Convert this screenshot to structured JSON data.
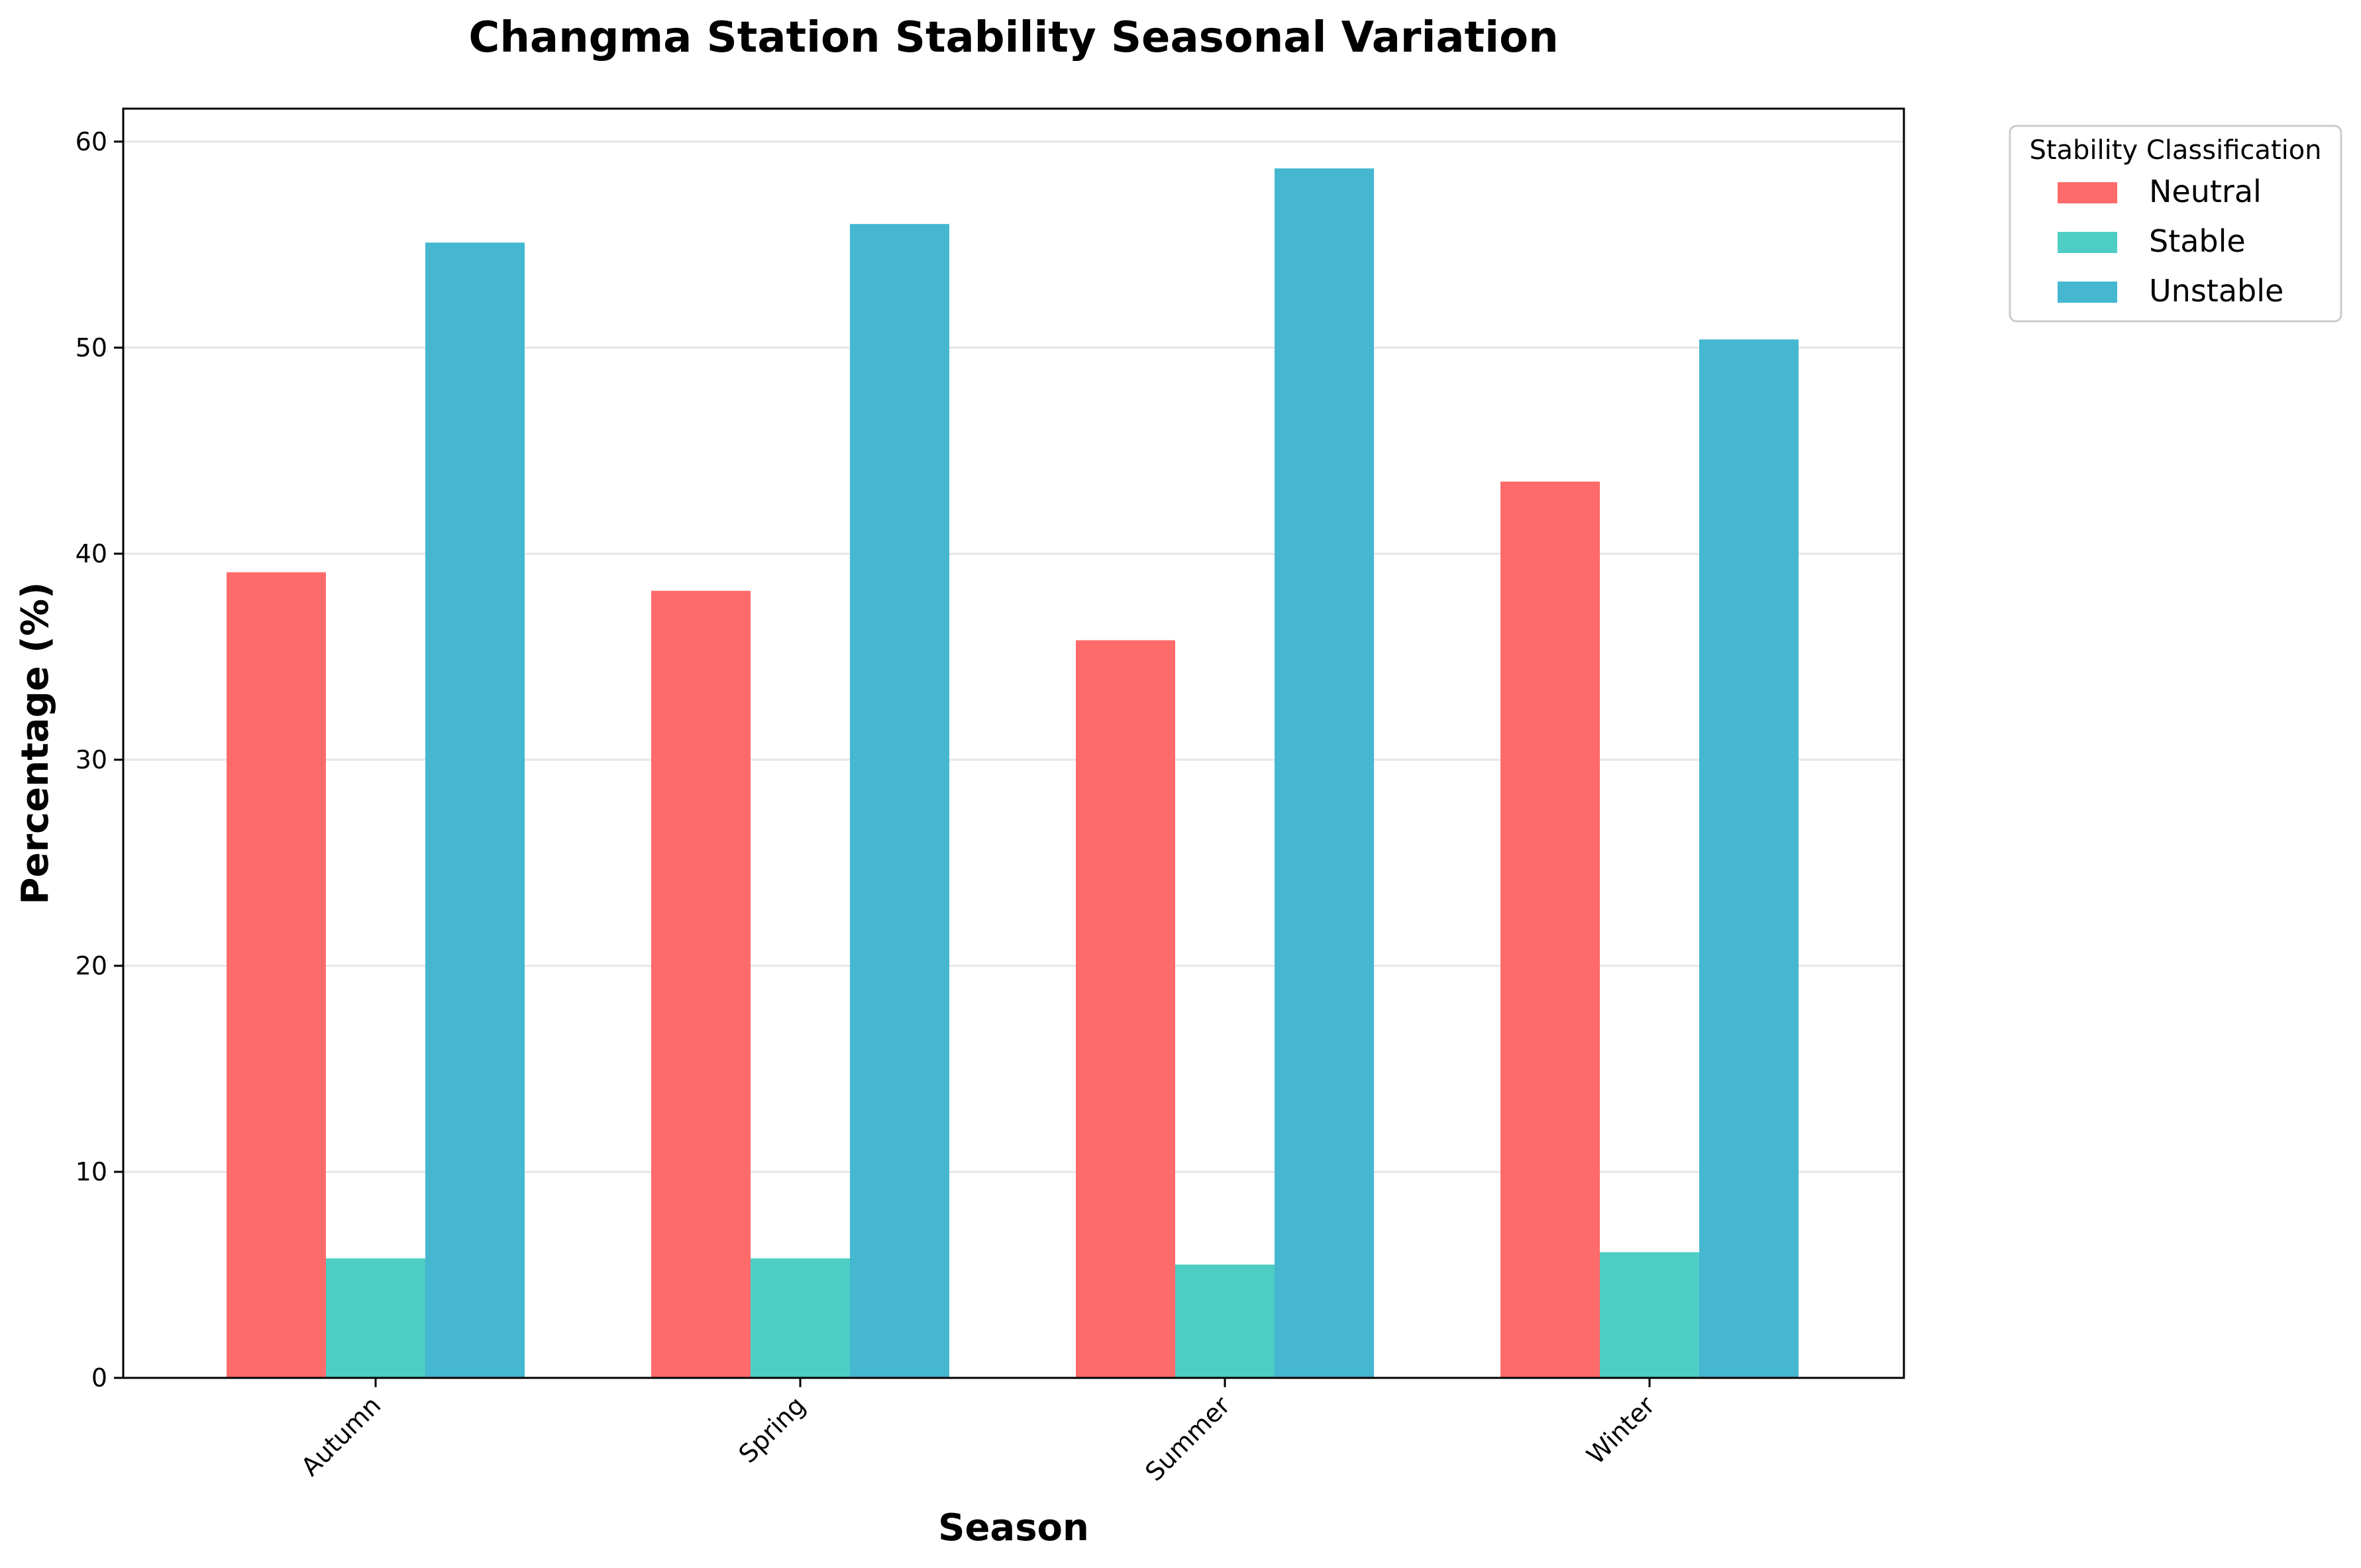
{
  "chart_data": {
    "type": "bar",
    "title": "Changma Station Stability Seasonal Variation",
    "xlabel": "Season",
    "ylabel": "Percentage (%)",
    "categories": [
      "Autumn",
      "Spring",
      "Summer",
      "Winter"
    ],
    "series": [
      {
        "name": "Neutral",
        "color": "#ff6b6b",
        "values": [
          39.1,
          38.2,
          35.8,
          43.5
        ]
      },
      {
        "name": "Stable",
        "color": "#4ecdc4",
        "values": [
          5.8,
          5.8,
          5.5,
          6.1
        ]
      },
      {
        "name": "Unstable",
        "color": "#45b7d1",
        "values": [
          55.1,
          56.0,
          58.7,
          50.4
        ]
      }
    ],
    "ylim": [
      0,
      61.6
    ],
    "yticks": [
      0,
      10,
      20,
      30,
      40,
      50,
      60
    ],
    "grid": "y",
    "legend": {
      "title": "Stability Classification",
      "position": "outside-top-right"
    }
  }
}
